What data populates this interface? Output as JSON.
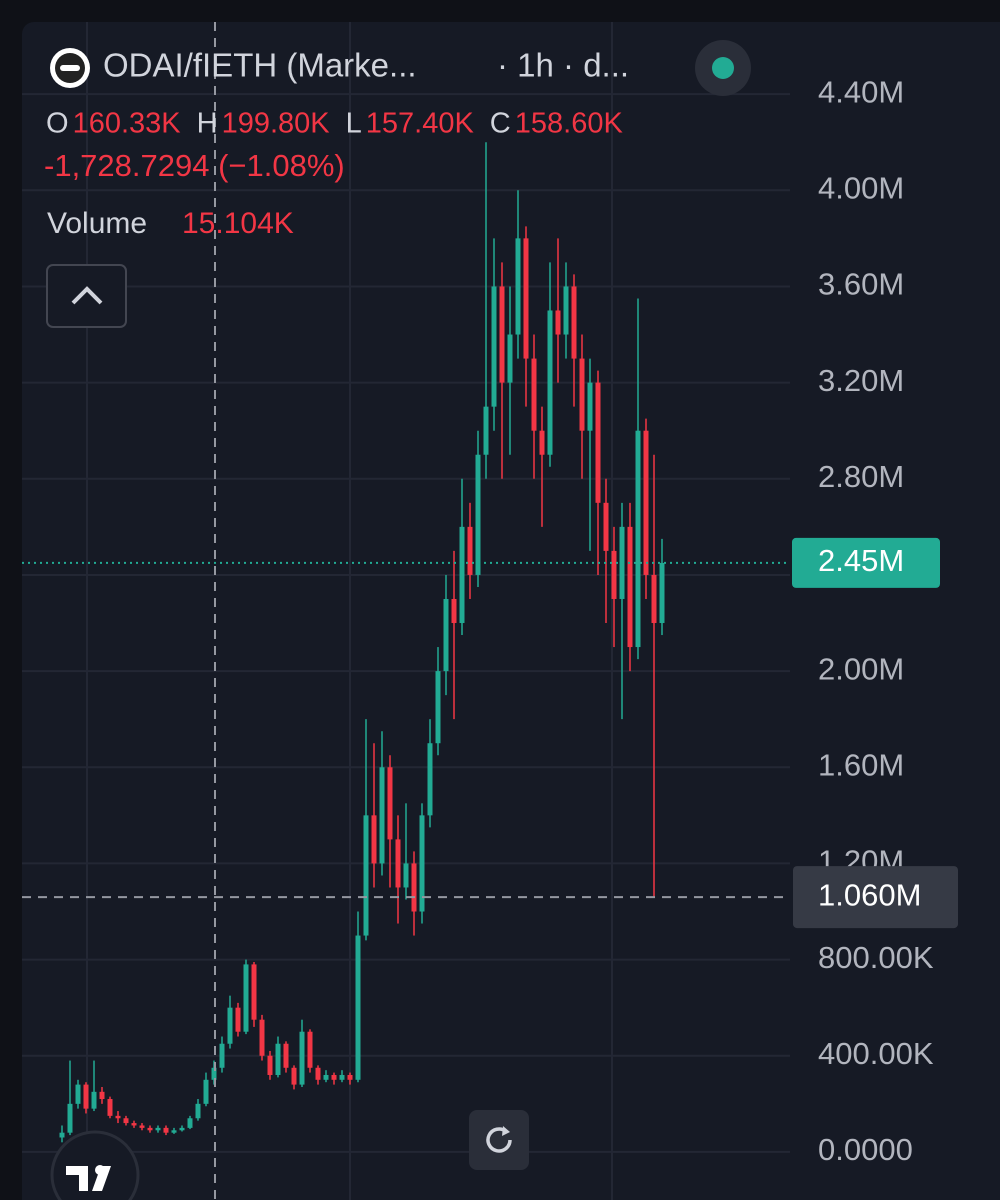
{
  "chart_data": {
    "type": "candlestick",
    "symbol": "ODAI/fIETH (Marke...",
    "interval": "· 1h · d...",
    "ohlc_legend": [
      {
        "label": "O",
        "value": "160.33K"
      },
      {
        "label": "H",
        "value": "199.80K"
      },
      {
        "label": "L",
        "value": "157.40K"
      },
      {
        "label": "C",
        "value": "158.60K"
      }
    ],
    "change": "-1,728.7294 (−1.08%)",
    "volume_label": "Volume",
    "volume_value": "15.104K",
    "up_color": "#22ab94",
    "down_color": "#f23645",
    "ylim": [
      -200000,
      4700000
    ],
    "yticks": [
      {
        "value": 0,
        "label": "0.0000"
      },
      {
        "value": 400000,
        "label": "400.00K"
      },
      {
        "value": 800000,
        "label": "800.00K"
      },
      {
        "value": 1200000,
        "label": "1.20M"
      },
      {
        "value": 1600000,
        "label": "1.60M"
      },
      {
        "value": 2000000,
        "label": "2.00M"
      },
      {
        "value": 2400000,
        "label": "2.40M"
      },
      {
        "value": 2800000,
        "label": "2.80M"
      },
      {
        "value": 3200000,
        "label": "3.20M"
      },
      {
        "value": 3600000,
        "label": "3.60M"
      },
      {
        "value": 4000000,
        "label": "4.00M"
      },
      {
        "value": 4400000,
        "label": "4.40M"
      }
    ],
    "last_price": {
      "value": 2450000,
      "label": "2.45M"
    },
    "crosshair": {
      "value": 1060000,
      "label": "1.060M"
    },
    "open": [
      60000,
      80000,
      200000,
      280000,
      180000,
      250000,
      220000,
      150000,
      140000,
      120000,
      110000,
      100000,
      90000,
      100000,
      80000,
      90000,
      100000,
      140000,
      200000,
      300000,
      350000,
      450000,
      600000,
      500000,
      780000,
      550000,
      400000,
      320000,
      450000,
      350000,
      280000,
      500000,
      350000,
      300000,
      320000,
      300000,
      320000,
      300000,
      900000,
      1400000,
      1200000,
      1600000,
      1300000,
      1100000,
      1200000,
      1000000,
      1400000,
      1700000,
      2000000,
      2300000,
      2200000,
      2600000,
      2400000,
      2900000,
      3100000,
      3600000,
      3200000,
      3400000,
      3800000,
      3300000,
      3000000,
      2900000,
      3500000,
      3400000,
      3600000,
      3300000,
      3000000,
      3200000,
      2700000,
      2500000,
      2300000,
      2600000,
      2100000,
      3000000,
      2400000,
      2200000
    ],
    "high": [
      110000,
      380000,
      300000,
      290000,
      380000,
      270000,
      230000,
      170000,
      150000,
      130000,
      120000,
      110000,
      110000,
      110000,
      100000,
      110000,
      150000,
      220000,
      330000,
      380000,
      480000,
      650000,
      620000,
      800000,
      790000,
      570000,
      420000,
      480000,
      460000,
      360000,
      550000,
      510000,
      360000,
      340000,
      330000,
      340000,
      330000,
      1000000,
      1800000,
      1700000,
      1750000,
      1650000,
      1400000,
      1450000,
      1250000,
      1450000,
      1800000,
      2100000,
      2400000,
      2500000,
      2800000,
      2700000,
      3000000,
      4200000,
      3800000,
      3700000,
      3600000,
      4000000,
      3850000,
      3400000,
      3100000,
      3700000,
      3800000,
      3700000,
      3650000,
      3400000,
      3300000,
      3250000,
      2800000,
      2600000,
      2700000,
      2700000,
      3550000,
      3050000,
      2900000,
      2550000
    ],
    "low": [
      40000,
      70000,
      180000,
      160000,
      170000,
      200000,
      140000,
      120000,
      110000,
      100000,
      90000,
      80000,
      80000,
      70000,
      75000,
      85000,
      95000,
      130000,
      190000,
      280000,
      330000,
      430000,
      480000,
      490000,
      520000,
      380000,
      300000,
      310000,
      330000,
      260000,
      270000,
      330000,
      280000,
      290000,
      280000,
      290000,
      280000,
      290000,
      880000,
      1100000,
      1150000,
      1100000,
      950000,
      1050000,
      900000,
      950000,
      1350000,
      1650000,
      1900000,
      1800000,
      2150000,
      2300000,
      2350000,
      2800000,
      3000000,
      2800000,
      2900000,
      3300000,
      3100000,
      2800000,
      2600000,
      2850000,
      3200000,
      3300000,
      3100000,
      2800000,
      2500000,
      2400000,
      2200000,
      2100000,
      1800000,
      2000000,
      2050000,
      2300000,
      1060000,
      2150000
    ],
    "close": [
      80000,
      200000,
      280000,
      180000,
      250000,
      220000,
      150000,
      140000,
      120000,
      110000,
      100000,
      90000,
      100000,
      80000,
      90000,
      100000,
      140000,
      200000,
      300000,
      350000,
      450000,
      600000,
      500000,
      780000,
      550000,
      400000,
      320000,
      450000,
      350000,
      280000,
      500000,
      350000,
      300000,
      320000,
      300000,
      320000,
      300000,
      900000,
      1400000,
      1200000,
      1600000,
      1300000,
      1100000,
      1200000,
      1000000,
      1400000,
      1700000,
      2000000,
      2300000,
      2200000,
      2600000,
      2400000,
      2900000,
      3100000,
      3600000,
      3200000,
      3400000,
      3800000,
      3300000,
      3000000,
      2900000,
      3500000,
      3400000,
      3600000,
      3300000,
      3000000,
      3200000,
      2700000,
      2500000,
      2300000,
      2600000,
      2100000,
      3000000,
      2400000,
      2200000,
      2450000
    ]
  }
}
